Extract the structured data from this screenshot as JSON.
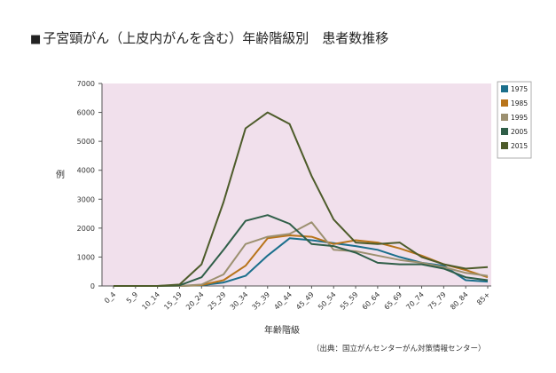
{
  "title_marker": "■",
  "chart_data": {
    "type": "line",
    "title": "子宮頸がん（上皮内がんを含む）年齢階級別　患者数推移",
    "xlabel": "年齢階級",
    "ylabel": "例",
    "ylim": [
      0,
      7000
    ],
    "yticks": [
      0,
      1000,
      2000,
      3000,
      4000,
      5000,
      6000,
      7000
    ],
    "categories": [
      "0_4",
      "5_9",
      "10_14",
      "15_19",
      "20_24",
      "25_29",
      "30_34",
      "35_39",
      "40_44",
      "45_49",
      "50_54",
      "55_59",
      "60_64",
      "65_69",
      "70_74",
      "75_79",
      "80_84",
      "85+"
    ],
    "series": [
      {
        "name": "1975",
        "color": "#1b6f8c",
        "values": [
          0,
          0,
          0,
          0,
          20,
          120,
          350,
          1050,
          1650,
          1580,
          1480,
          1380,
          1250,
          1000,
          800,
          700,
          200,
          150
        ]
      },
      {
        "name": "1985",
        "color": "#b8741a",
        "values": [
          0,
          0,
          0,
          0,
          30,
          200,
          700,
          1650,
          1750,
          1700,
          1450,
          1580,
          1500,
          1300,
          1050,
          750,
          550,
          300
        ]
      },
      {
        "name": "1995",
        "color": "#9c9070",
        "values": [
          0,
          0,
          0,
          0,
          50,
          400,
          1450,
          1700,
          1800,
          2200,
          1250,
          1200,
          1050,
          900,
          800,
          650,
          450,
          350
        ]
      },
      {
        "name": "2005",
        "color": "#2f5e48",
        "values": [
          0,
          0,
          0,
          20,
          300,
          1250,
          2250,
          2450,
          2150,
          1450,
          1380,
          1150,
          800,
          750,
          750,
          600,
          300,
          200
        ]
      },
      {
        "name": "2015",
        "color": "#4d5b2a",
        "values": [
          0,
          0,
          0,
          50,
          750,
          2900,
          5450,
          6000,
          5600,
          3800,
          2300,
          1500,
          1450,
          1500,
          1000,
          750,
          600,
          650
        ]
      }
    ]
  },
  "source_note": "（出典：国立がんセンターがん対策情報センター）"
}
